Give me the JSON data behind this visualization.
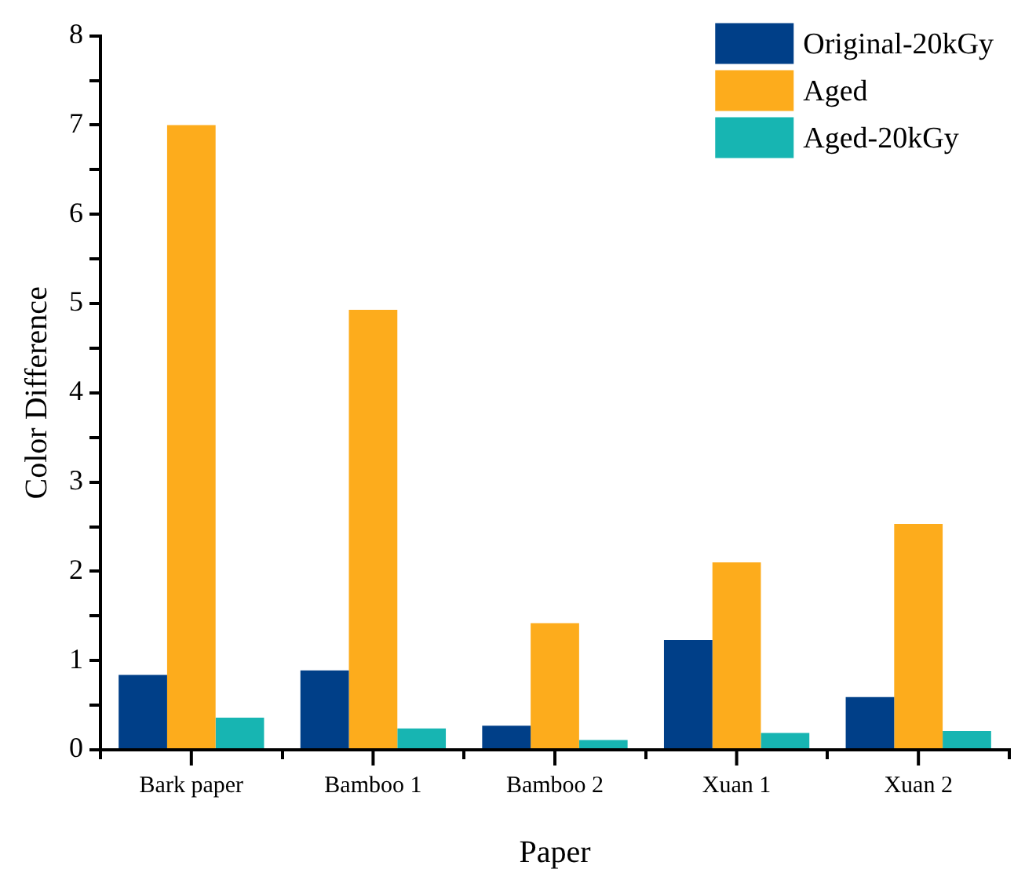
{
  "chart_data": {
    "type": "bar",
    "xlabel": "Paper",
    "ylabel": "Color Difference",
    "categories": [
      "Bark paper",
      "Bamboo 1",
      "Bamboo 2",
      "Xuan 1",
      "Xuan 2"
    ],
    "series": [
      {
        "name": "Original-20kGy",
        "color": "#003f88",
        "values": [
          0.84,
          0.89,
          0.27,
          1.23,
          0.59
        ]
      },
      {
        "name": "Aged",
        "color": "#fdac1c",
        "values": [
          7.0,
          4.93,
          1.42,
          2.1,
          2.53
        ]
      },
      {
        "name": "Aged-20kGy",
        "color": "#17b5b2",
        "values": [
          0.36,
          0.24,
          0.11,
          0.19,
          0.21
        ]
      }
    ],
    "ylim": [
      0,
      8
    ],
    "yticks": [
      0,
      {
        "value": 0.5,
        "label": null
      },
      1,
      {
        "value": 1.5,
        "label": null
      },
      2,
      {
        "value": 2.5,
        "label": null
      },
      3,
      {
        "value": 3.5,
        "label": null
      },
      4,
      {
        "value": 4.5,
        "label": null
      },
      5,
      {
        "value": 5.5,
        "label": null
      },
      6,
      {
        "value": 6.5,
        "label": null
      },
      7,
      {
        "value": 7.5,
        "label": null
      },
      8
    ],
    "grid": false,
    "legend": "top right"
  }
}
